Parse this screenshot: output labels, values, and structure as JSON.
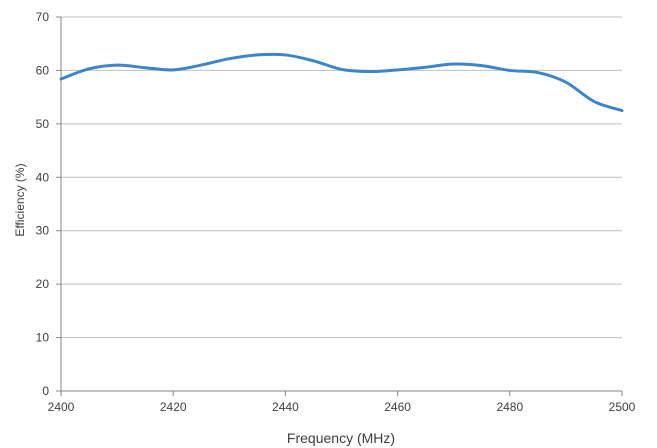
{
  "chart_data": {
    "type": "line",
    "title": "",
    "xlabel": "Frequency (MHz)",
    "ylabel": "Efficiency (%)",
    "xlim": [
      2400,
      2500
    ],
    "ylim": [
      0,
      70
    ],
    "x_ticks": [
      2400,
      2420,
      2440,
      2460,
      2480,
      2500
    ],
    "y_ticks": [
      0,
      10,
      20,
      30,
      40,
      50,
      60,
      70
    ],
    "grid": "horizontal",
    "legend": "none",
    "series": [
      {
        "color": "#3d85c6",
        "x": [
          2400,
          2405,
          2410,
          2415,
          2420,
          2425,
          2430,
          2435,
          2440,
          2445,
          2450,
          2455,
          2460,
          2465,
          2470,
          2475,
          2480,
          2485,
          2490,
          2495,
          2500
        ],
        "y": [
          58.4,
          60.3,
          61.0,
          60.5,
          60.1,
          61.0,
          62.2,
          62.9,
          62.9,
          61.8,
          60.2,
          59.8,
          60.1,
          60.6,
          61.2,
          60.9,
          60.0,
          59.6,
          57.8,
          54.2,
          52.5
        ]
      }
    ]
  }
}
